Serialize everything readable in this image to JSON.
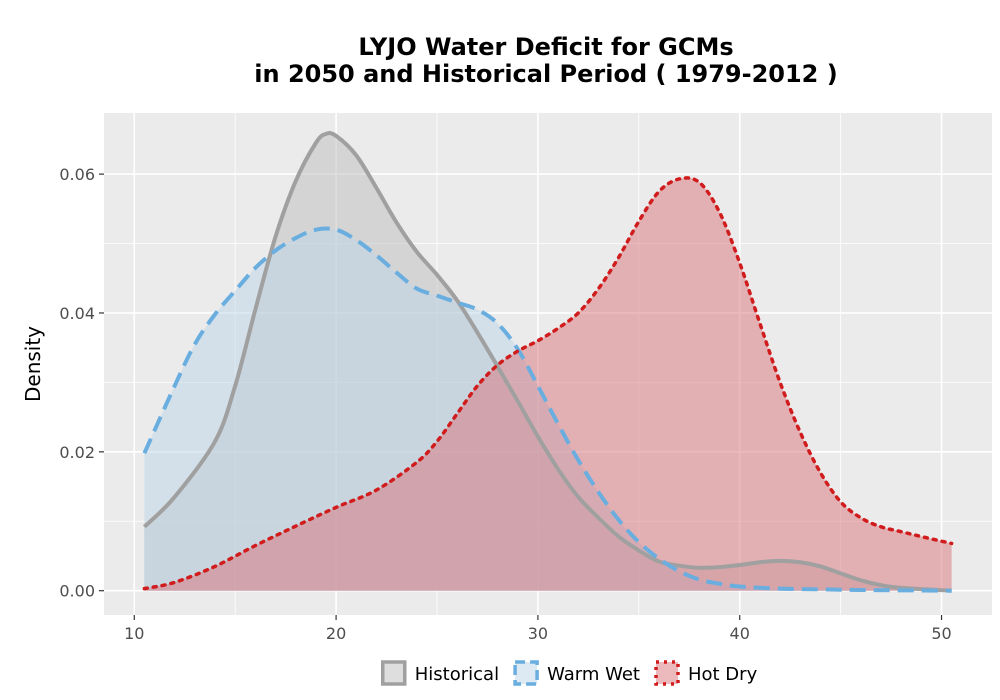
{
  "chart_data": {
    "type": "area",
    "title_line1": "LYJO  Water Deficit for GCMs",
    "title_line2": "in 2050 and Historical Period ( 1979-2012 )",
    "xlabel": "",
    "ylabel": "Density",
    "xlim": [
      8.5,
      52.5
    ],
    "ylim": [
      -0.0035,
      0.0688
    ],
    "x_ticks": [
      10,
      20,
      30,
      40,
      50
    ],
    "x_tick_labels": [
      "10",
      "20",
      "30",
      "40",
      "50"
    ],
    "y_ticks": [
      0,
      0.02,
      0.04,
      0.06
    ],
    "y_tick_labels": [
      "0.00",
      "0.02",
      "0.04",
      "0.06"
    ],
    "grid": true,
    "legend_position": "bottom",
    "series": [
      {
        "name": "Historical",
        "fill": "#bdbdbd",
        "line": "#a0a0a0",
        "dash": "solid",
        "x": [
          10.5,
          12,
          14,
          15,
          16,
          17,
          18,
          19,
          19.5,
          20,
          21,
          22,
          23,
          24,
          25,
          26,
          27,
          28,
          29,
          30,
          31,
          32,
          33,
          34,
          35,
          36,
          37,
          38,
          39,
          40,
          41,
          42,
          43,
          44,
          45,
          46,
          47,
          48,
          50.5
        ],
        "y": [
          0.0092,
          0.0135,
          0.0215,
          0.0295,
          0.0405,
          0.051,
          0.059,
          0.0645,
          0.0658,
          0.0655,
          0.0627,
          0.058,
          0.053,
          0.0488,
          0.0455,
          0.0418,
          0.0372,
          0.0323,
          0.0273,
          0.0222,
          0.0175,
          0.0135,
          0.0105,
          0.0078,
          0.0058,
          0.0042,
          0.0036,
          0.0033,
          0.0034,
          0.0037,
          0.0041,
          0.0043,
          0.0041,
          0.0035,
          0.0025,
          0.0015,
          0.0008,
          0.0004,
          0.0
        ]
      },
      {
        "name": "Warm Wet",
        "fill": "#bcd6e8",
        "line": "#6aaee0",
        "dash": "dashed",
        "x": [
          10.5,
          12,
          13,
          14,
          15,
          16,
          17,
          18,
          19,
          20,
          21,
          22,
          23,
          24,
          25,
          26,
          27,
          28,
          29,
          30,
          31,
          32,
          33,
          34,
          35,
          36,
          37,
          38,
          39,
          40,
          42,
          44,
          46,
          50.5
        ],
        "y": [
          0.0198,
          0.0295,
          0.0355,
          0.0398,
          0.0432,
          0.0465,
          0.049,
          0.0508,
          0.052,
          0.052,
          0.0505,
          0.0483,
          0.0458,
          0.0435,
          0.0425,
          0.0415,
          0.0405,
          0.0385,
          0.0348,
          0.0295,
          0.024,
          0.0188,
          0.0142,
          0.0102,
          0.007,
          0.0046,
          0.0028,
          0.0016,
          0.001,
          0.0006,
          0.0003,
          0.0002,
          0.0001,
          0.0
        ]
      },
      {
        "name": "Hot Dry",
        "fill": "#d9737c",
        "line": "#d01c1c",
        "dash": "dotted",
        "x": [
          10.5,
          12,
          14,
          16,
          18,
          20,
          22,
          24,
          25,
          26,
          27,
          28,
          29,
          30,
          31,
          32,
          33,
          34,
          35,
          36,
          37,
          38,
          39,
          40,
          41,
          42,
          43,
          44,
          45,
          46,
          47,
          48,
          49,
          50.5
        ],
        "y": [
          0.0003,
          0.0012,
          0.0035,
          0.0065,
          0.0093,
          0.012,
          0.0145,
          0.0185,
          0.0215,
          0.0255,
          0.0295,
          0.0325,
          0.0345,
          0.036,
          0.0378,
          0.04,
          0.0435,
          0.048,
          0.0532,
          0.0575,
          0.0593,
          0.0588,
          0.0545,
          0.0472,
          0.0385,
          0.03,
          0.0228,
          0.017,
          0.0128,
          0.0105,
          0.0092,
          0.0085,
          0.0078,
          0.0068
        ]
      }
    ]
  }
}
